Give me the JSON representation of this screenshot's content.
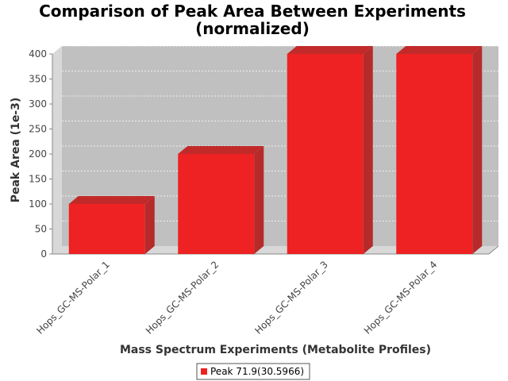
{
  "chart_data": {
    "type": "bar",
    "title_lines": [
      "Comparison of Peak Area Between Experiments",
      "(normalized)"
    ],
    "xlabel": "Mass Spectrum Experiments (Metabolite Profiles)",
    "ylabel": "Peak Area (1e-3)",
    "categories": [
      "Hops_GC-MS-Polar_1",
      "Hops_GC-MS-Polar_2",
      "Hops_GC-MS-Polar_3",
      "Hops_GC-MS-Polar_4"
    ],
    "series": [
      {
        "name": "Peak 71.9(30.5966)",
        "values": [
          100,
          200,
          400,
          400
        ],
        "color": "#ee2222"
      }
    ],
    "ylim": [
      0,
      400
    ],
    "yticks": [
      0,
      50,
      100,
      150,
      200,
      250,
      300,
      350,
      400
    ],
    "grid": true,
    "legend_position": "bottom",
    "style": "3d-bar",
    "plot_background": "#c0c0c0"
  }
}
